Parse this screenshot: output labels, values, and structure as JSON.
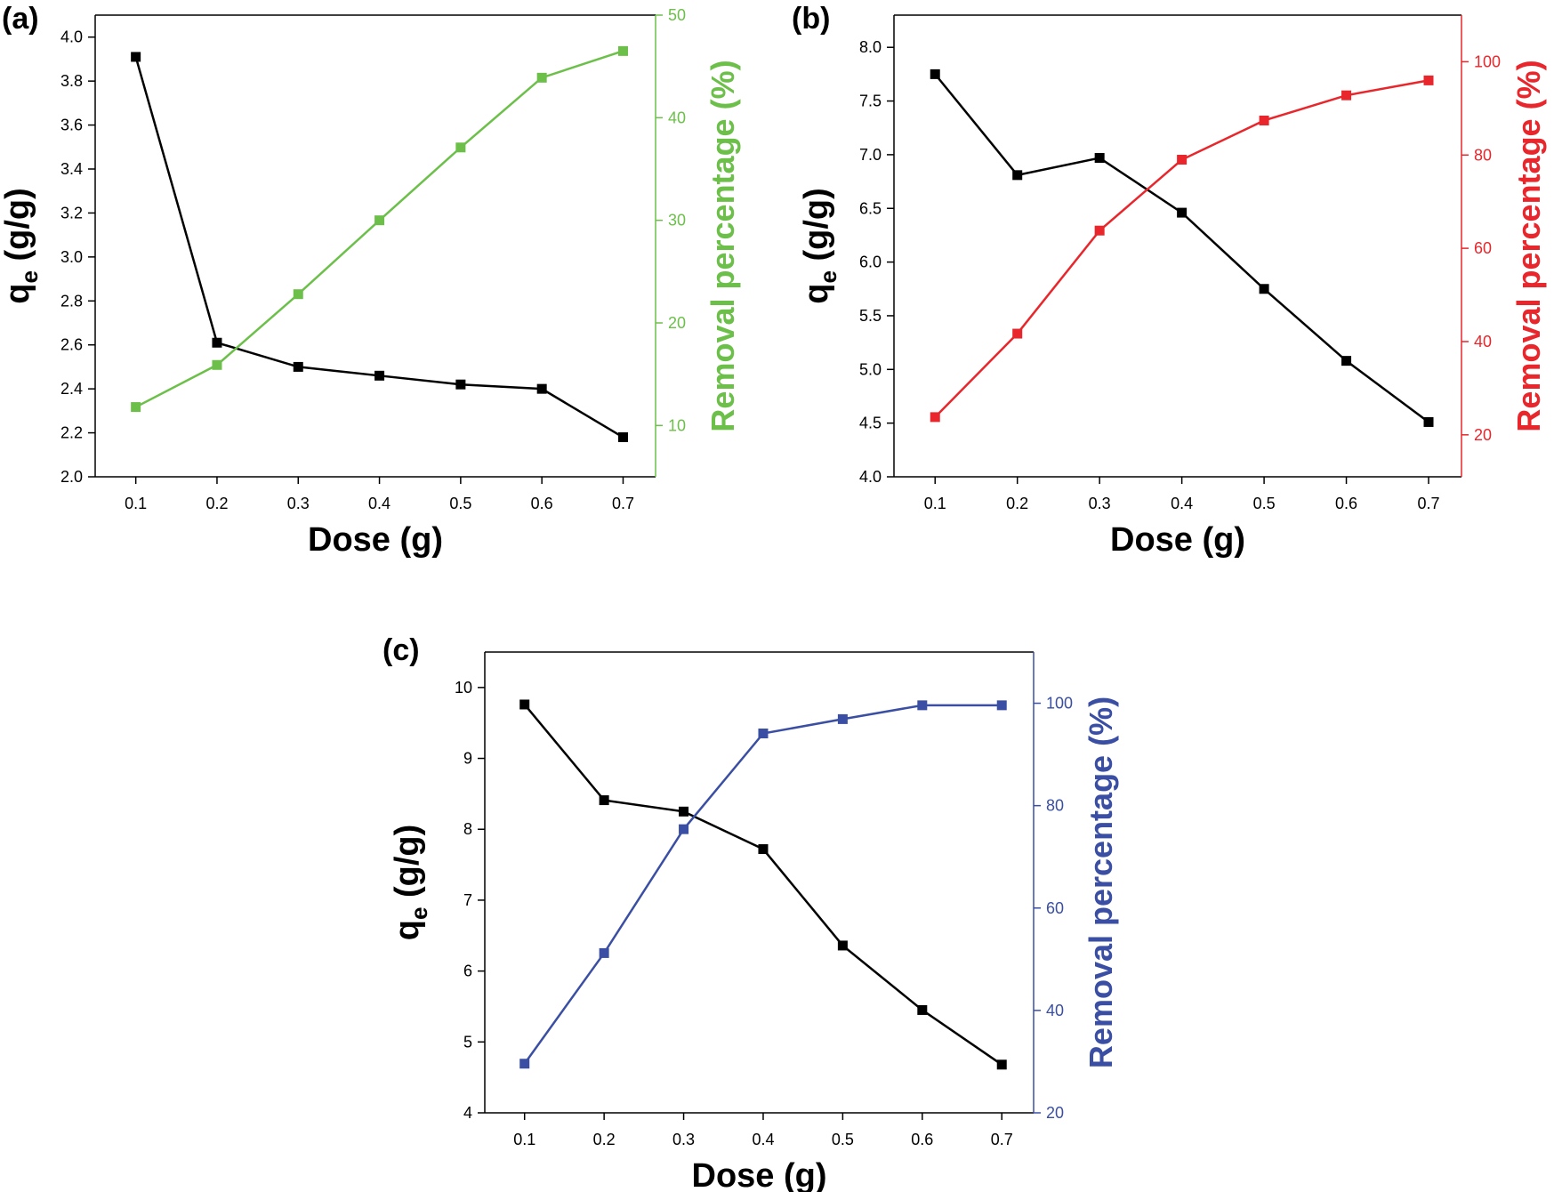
{
  "chart_data": [
    {
      "type": "line",
      "panel_label": "(a)",
      "x": [
        0.1,
        0.2,
        0.3,
        0.4,
        0.5,
        0.6,
        0.7
      ],
      "xlabel": "Dose (g)",
      "xticks": [
        "0.1",
        "0.2",
        "0.3",
        "0.4",
        "0.5",
        "0.6",
        "0.7"
      ],
      "xlim": [
        0.05,
        0.74
      ],
      "series": [
        {
          "axis": "left",
          "color": "#000000",
          "values": [
            3.91,
            2.61,
            2.5,
            2.46,
            2.42,
            2.4,
            2.18
          ]
        },
        {
          "axis": "right",
          "color": "#6cc04a",
          "values": [
            11.8,
            15.9,
            22.8,
            30.0,
            37.1,
            43.9,
            46.5
          ]
        }
      ],
      "ylabel_left": {
        "main": "q",
        "sub": "e",
        "rest": " (g/g)"
      },
      "ylabel_right": "Removal percentage (%)",
      "ylim_left": [
        2.0,
        4.1
      ],
      "yticks_left": [
        "2.0",
        "2.2",
        "2.4",
        "2.6",
        "2.8",
        "3.0",
        "3.2",
        "3.4",
        "3.6",
        "3.8",
        "4.0"
      ],
      "ylim_right": [
        5,
        50
      ],
      "yticks_right": [
        "10",
        "20",
        "30",
        "40",
        "50"
      ],
      "right_axis_color": "#6cc04a"
    },
    {
      "type": "line",
      "panel_label": "(b)",
      "x": [
        0.1,
        0.2,
        0.3,
        0.4,
        0.5,
        0.6,
        0.7
      ],
      "xlabel": "Dose (g)",
      "xticks": [
        "0.1",
        "0.2",
        "0.3",
        "0.4",
        "0.5",
        "0.6",
        "0.7"
      ],
      "xlim": [
        0.05,
        0.74
      ],
      "series": [
        {
          "axis": "left",
          "color": "#000000",
          "values": [
            7.75,
            6.81,
            6.97,
            6.46,
            5.75,
            5.08,
            4.51
          ]
        },
        {
          "axis": "right",
          "color": "#e8262b",
          "values": [
            23.8,
            41.7,
            63.8,
            79.0,
            87.4,
            92.8,
            96.0
          ]
        }
      ],
      "ylabel_left": {
        "main": "q",
        "sub": "e",
        "rest": " (g/g)"
      },
      "ylabel_right": "Removal percentage (%)",
      "ylim_left": [
        4.0,
        8.3
      ],
      "yticks_left": [
        "4.0",
        "4.5",
        "5.0",
        "5.5",
        "6.0",
        "6.5",
        "7.0",
        "7.5",
        "8.0"
      ],
      "ylim_right": [
        11,
        110
      ],
      "yticks_right": [
        "20",
        "40",
        "60",
        "80",
        "100"
      ],
      "right_axis_color": "#e8262b"
    },
    {
      "type": "line",
      "panel_label": "(c)",
      "x": [
        0.1,
        0.2,
        0.3,
        0.4,
        0.5,
        0.6,
        0.7
      ],
      "xlabel": "Dose (g)",
      "xticks": [
        "0.1",
        "0.2",
        "0.3",
        "0.4",
        "0.5",
        "0.6",
        "0.7"
      ],
      "xlim": [
        0.05,
        0.74
      ],
      "series": [
        {
          "axis": "left",
          "color": "#000000",
          "values": [
            9.76,
            8.41,
            8.25,
            7.72,
            6.36,
            5.45,
            4.68
          ]
        },
        {
          "axis": "right",
          "color": "#3a4fa3",
          "values": [
            29.6,
            51.2,
            75.4,
            94.1,
            96.9,
            99.6,
            99.6
          ]
        }
      ],
      "ylabel_left": {
        "main": "q",
        "sub": "e",
        "rest": " (g/g)"
      },
      "ylabel_right": "Removal percentage (%)",
      "ylim_left": [
        4.0,
        10.5
      ],
      "yticks_left": [
        "4",
        "5",
        "6",
        "7",
        "8",
        "9",
        "10"
      ],
      "ylim_right": [
        20,
        110
      ],
      "yticks_right": [
        "20",
        "40",
        "60",
        "80",
        "100"
      ],
      "right_axis_color": "#3a4fa3"
    }
  ]
}
